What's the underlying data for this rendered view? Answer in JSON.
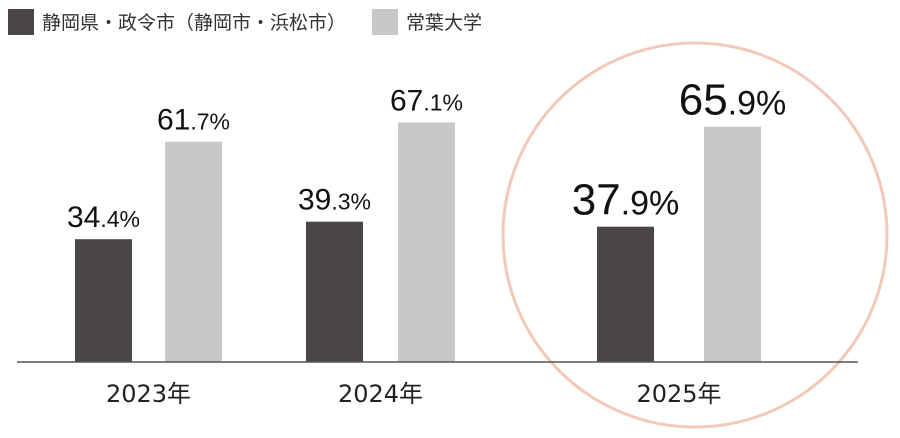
{
  "legend": {
    "series_a": "静岡県・政令市（静岡市・浜松市）",
    "series_b": "常葉大学"
  },
  "chart_data": {
    "type": "bar",
    "categories": [
      "2023年",
      "2024年",
      "2025年"
    ],
    "series": [
      {
        "name": "静岡県・政令市（静岡市・浜松市）",
        "values": [
          34.4,
          39.3,
          37.9
        ],
        "labels": [
          "34.4%",
          "39.3%",
          "37.9%"
        ],
        "color": "#4a4645"
      },
      {
        "name": "常葉大学",
        "values": [
          61.7,
          67.1,
          65.9
        ],
        "labels": [
          "61.7%",
          "67.1%",
          "65.9%"
        ],
        "color": "#c8c8c8"
      }
    ],
    "ylim": [
      0,
      100
    ],
    "grid": false,
    "legend_position": "top-left",
    "highlight_category": "2025年",
    "highlight_color": "#f2c9b8"
  }
}
